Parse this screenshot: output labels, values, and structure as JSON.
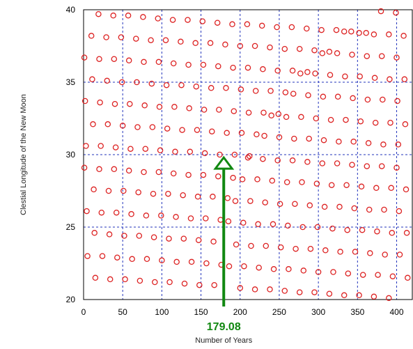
{
  "chart_data": {
    "type": "scatter",
    "xlabel": "Number of Years",
    "ylabel": "Clestial Longitude of the New Moon",
    "xlim": [
      0,
      420
    ],
    "ylim": [
      20,
      40
    ],
    "x_ticks": [
      0,
      50,
      100,
      150,
      200,
      250,
      300,
      350,
      400
    ],
    "y_ticks": [
      20,
      25,
      30,
      35,
      40
    ],
    "grid": true,
    "marker": "open-circle",
    "series": [
      {
        "values": [
          [
            19,
            39.7
          ],
          [
            38,
            39.6
          ],
          [
            57,
            39.6
          ],
          [
            76,
            39.5
          ],
          [
            95,
            39.4
          ],
          [
            114,
            39.3
          ],
          [
            133,
            39.3
          ],
          [
            152,
            39.2
          ],
          [
            171,
            39.1
          ],
          [
            190,
            39.0
          ],
          [
            209,
            39.0
          ],
          [
            228,
            38.9
          ],
          [
            247,
            38.8
          ],
          [
            266,
            38.8
          ],
          [
            285,
            38.7
          ],
          [
            304,
            38.6
          ],
          [
            323,
            38.6
          ],
          [
            342,
            38.5
          ],
          [
            361,
            38.4
          ],
          [
            380,
            39.9
          ],
          [
            399,
            39.8
          ],
          [
            10,
            38.2
          ],
          [
            29,
            38.1
          ],
          [
            48,
            38.1
          ],
          [
            67,
            38.0
          ],
          [
            86,
            37.9
          ],
          [
            105,
            37.9
          ],
          [
            124,
            37.8
          ],
          [
            143,
            37.7
          ],
          [
            162,
            37.7
          ],
          [
            181,
            37.6
          ],
          [
            200,
            37.5
          ],
          [
            219,
            37.5
          ],
          [
            238,
            37.4
          ],
          [
            257,
            37.3
          ],
          [
            276,
            37.3
          ],
          [
            295,
            37.2
          ],
          [
            314,
            37.1
          ],
          [
            333,
            38.5
          ],
          [
            352,
            38.4
          ],
          [
            371,
            38.3
          ],
          [
            390,
            38.3
          ],
          [
            409,
            38.2
          ],
          [
            1,
            36.7
          ],
          [
            20,
            36.6
          ],
          [
            39,
            36.6
          ],
          [
            58,
            36.5
          ],
          [
            77,
            36.4
          ],
          [
            96,
            36.4
          ],
          [
            115,
            36.3
          ],
          [
            134,
            36.2
          ],
          [
            153,
            36.2
          ],
          [
            172,
            36.1
          ],
          [
            191,
            36.0
          ],
          [
            210,
            36.0
          ],
          [
            229,
            35.9
          ],
          [
            248,
            35.8
          ],
          [
            267,
            35.8
          ],
          [
            286,
            35.7
          ],
          [
            305,
            37.0
          ],
          [
            324,
            37.0
          ],
          [
            343,
            36.9
          ],
          [
            362,
            36.8
          ],
          [
            381,
            36.8
          ],
          [
            400,
            36.7
          ],
          [
            11,
            35.2
          ],
          [
            30,
            35.1
          ],
          [
            49,
            35.0
          ],
          [
            68,
            35.0
          ],
          [
            87,
            34.9
          ],
          [
            106,
            34.8
          ],
          [
            125,
            34.8
          ],
          [
            144,
            34.7
          ],
          [
            163,
            34.6
          ],
          [
            182,
            34.6
          ],
          [
            201,
            34.5
          ],
          [
            220,
            34.4
          ],
          [
            239,
            34.4
          ],
          [
            258,
            34.3
          ],
          [
            277,
            35.6
          ],
          [
            296,
            35.6
          ],
          [
            315,
            35.5
          ],
          [
            334,
            35.4
          ],
          [
            353,
            35.4
          ],
          [
            372,
            35.3
          ],
          [
            391,
            35.2
          ],
          [
            410,
            35.2
          ],
          [
            2,
            33.7
          ],
          [
            21,
            33.6
          ],
          [
            40,
            33.5
          ],
          [
            59,
            33.5
          ],
          [
            78,
            33.4
          ],
          [
            97,
            33.3
          ],
          [
            116,
            33.3
          ],
          [
            135,
            33.2
          ],
          [
            154,
            33.1
          ],
          [
            173,
            33.1
          ],
          [
            192,
            33.0
          ],
          [
            211,
            32.9
          ],
          [
            230,
            32.9
          ],
          [
            249,
            32.8
          ],
          [
            268,
            34.2
          ],
          [
            287,
            34.1
          ],
          [
            306,
            34.0
          ],
          [
            325,
            34.0
          ],
          [
            344,
            33.9
          ],
          [
            363,
            33.8
          ],
          [
            382,
            33.8
          ],
          [
            401,
            33.7
          ],
          [
            12,
            32.1
          ],
          [
            31,
            32.1
          ],
          [
            50,
            32.0
          ],
          [
            69,
            31.9
          ],
          [
            88,
            31.9
          ],
          [
            107,
            31.8
          ],
          [
            126,
            31.7
          ],
          [
            145,
            31.7
          ],
          [
            164,
            31.6
          ],
          [
            183,
            31.5
          ],
          [
            202,
            31.5
          ],
          [
            221,
            31.4
          ],
          [
            240,
            32.7
          ],
          [
            259,
            32.6
          ],
          [
            278,
            32.6
          ],
          [
            297,
            32.5
          ],
          [
            316,
            32.4
          ],
          [
            335,
            32.4
          ],
          [
            354,
            32.3
          ],
          [
            373,
            32.2
          ],
          [
            392,
            32.2
          ],
          [
            411,
            32.1
          ],
          [
            3,
            30.6
          ],
          [
            22,
            30.6
          ],
          [
            41,
            30.5
          ],
          [
            60,
            30.4
          ],
          [
            79,
            30.4
          ],
          [
            98,
            30.3
          ],
          [
            117,
            30.2
          ],
          [
            136,
            30.2
          ],
          [
            155,
            30.1
          ],
          [
            174,
            30.0
          ],
          [
            193,
            30.0
          ],
          [
            212,
            29.9
          ],
          [
            231,
            31.3
          ],
          [
            250,
            31.2
          ],
          [
            269,
            31.1
          ],
          [
            288,
            31.1
          ],
          [
            307,
            31.0
          ],
          [
            326,
            30.9
          ],
          [
            345,
            30.9
          ],
          [
            364,
            30.8
          ],
          [
            383,
            30.7
          ],
          [
            402,
            30.7
          ],
          [
            1,
            29.1
          ],
          [
            20,
            29.0
          ],
          [
            39,
            29.0
          ],
          [
            58,
            28.9
          ],
          [
            77,
            28.8
          ],
          [
            96,
            28.8
          ],
          [
            115,
            28.7
          ],
          [
            134,
            28.6
          ],
          [
            153,
            28.6
          ],
          [
            172,
            28.5
          ],
          [
            191,
            28.4
          ],
          [
            210,
            29.8
          ],
          [
            229,
            29.7
          ],
          [
            248,
            29.6
          ],
          [
            267,
            29.6
          ],
          [
            286,
            29.5
          ],
          [
            305,
            29.4
          ],
          [
            324,
            29.4
          ],
          [
            343,
            29.3
          ],
          [
            362,
            29.2
          ],
          [
            381,
            29.2
          ],
          [
            400,
            29.1
          ],
          [
            13,
            27.6
          ],
          [
            32,
            27.5
          ],
          [
            51,
            27.5
          ],
          [
            70,
            27.4
          ],
          [
            89,
            27.3
          ],
          [
            108,
            27.3
          ],
          [
            127,
            27.2
          ],
          [
            146,
            27.1
          ],
          [
            165,
            27.1
          ],
          [
            184,
            27.0
          ],
          [
            203,
            28.3
          ],
          [
            222,
            28.3
          ],
          [
            241,
            28.2
          ],
          [
            260,
            28.1
          ],
          [
            279,
            28.1
          ],
          [
            298,
            28.0
          ],
          [
            317,
            27.9
          ],
          [
            336,
            27.9
          ],
          [
            355,
            27.8
          ],
          [
            374,
            27.7
          ],
          [
            393,
            27.7
          ],
          [
            412,
            27.6
          ],
          [
            4,
            26.1
          ],
          [
            23,
            26.0
          ],
          [
            42,
            26.0
          ],
          [
            61,
            25.9
          ],
          [
            80,
            25.8
          ],
          [
            99,
            25.8
          ],
          [
            118,
            25.7
          ],
          [
            137,
            25.6
          ],
          [
            156,
            25.6
          ],
          [
            175,
            25.5
          ],
          [
            194,
            26.8
          ],
          [
            213,
            26.8
          ],
          [
            232,
            26.7
          ],
          [
            251,
            26.6
          ],
          [
            270,
            26.6
          ],
          [
            289,
            26.5
          ],
          [
            308,
            26.4
          ],
          [
            327,
            26.4
          ],
          [
            346,
            26.3
          ],
          [
            365,
            26.2
          ],
          [
            384,
            26.2
          ],
          [
            403,
            26.1
          ],
          [
            14,
            24.6
          ],
          [
            33,
            24.5
          ],
          [
            52,
            24.4
          ],
          [
            71,
            24.4
          ],
          [
            90,
            24.3
          ],
          [
            109,
            24.2
          ],
          [
            128,
            24.2
          ],
          [
            147,
            24.1
          ],
          [
            166,
            24.0
          ],
          [
            185,
            25.4
          ],
          [
            204,
            25.3
          ],
          [
            223,
            25.2
          ],
          [
            242,
            25.2
          ],
          [
            261,
            25.1
          ],
          [
            280,
            25.0
          ],
          [
            299,
            25.0
          ],
          [
            318,
            24.9
          ],
          [
            337,
            24.8
          ],
          [
            356,
            24.8
          ],
          [
            375,
            24.7
          ],
          [
            394,
            24.6
          ],
          [
            413,
            24.6
          ],
          [
            5,
            23.0
          ],
          [
            24,
            23.0
          ],
          [
            43,
            22.9
          ],
          [
            62,
            22.8
          ],
          [
            81,
            22.8
          ],
          [
            100,
            22.7
          ],
          [
            119,
            22.6
          ],
          [
            138,
            22.6
          ],
          [
            157,
            22.5
          ],
          [
            176,
            22.4
          ],
          [
            195,
            23.8
          ],
          [
            214,
            23.7
          ],
          [
            233,
            23.7
          ],
          [
            252,
            23.6
          ],
          [
            271,
            23.5
          ],
          [
            290,
            23.5
          ],
          [
            309,
            23.4
          ],
          [
            328,
            23.3
          ],
          [
            347,
            23.3
          ],
          [
            366,
            23.2
          ],
          [
            385,
            23.1
          ],
          [
            404,
            23.1
          ],
          [
            15,
            21.5
          ],
          [
            34,
            21.4
          ],
          [
            53,
            21.4
          ],
          [
            72,
            21.3
          ],
          [
            91,
            21.2
          ],
          [
            110,
            21.2
          ],
          [
            129,
            21.1
          ],
          [
            148,
            21.0
          ],
          [
            167,
            21.0
          ],
          [
            186,
            22.3
          ],
          [
            205,
            22.3
          ],
          [
            224,
            22.2
          ],
          [
            243,
            22.1
          ],
          [
            262,
            22.1
          ],
          [
            281,
            22.0
          ],
          [
            300,
            21.9
          ],
          [
            319,
            21.9
          ],
          [
            338,
            21.8
          ],
          [
            357,
            21.7
          ],
          [
            376,
            21.7
          ],
          [
            395,
            21.6
          ],
          [
            414,
            21.5
          ],
          [
            200,
            20.8
          ],
          [
            219,
            20.7
          ],
          [
            238,
            20.7
          ],
          [
            257,
            20.6
          ],
          [
            276,
            20.5
          ],
          [
            295,
            20.5
          ],
          [
            314,
            20.4
          ],
          [
            333,
            20.3
          ],
          [
            352,
            20.3
          ],
          [
            371,
            20.2
          ],
          [
            390,
            20.1
          ]
        ]
      }
    ],
    "annotation": {
      "label": "179.08",
      "x": 179.08,
      "y": 29.8,
      "color": "#118811"
    },
    "colors": {
      "marker": "#dd2222",
      "grid": "#2233bb",
      "annotation": "#118811"
    }
  }
}
